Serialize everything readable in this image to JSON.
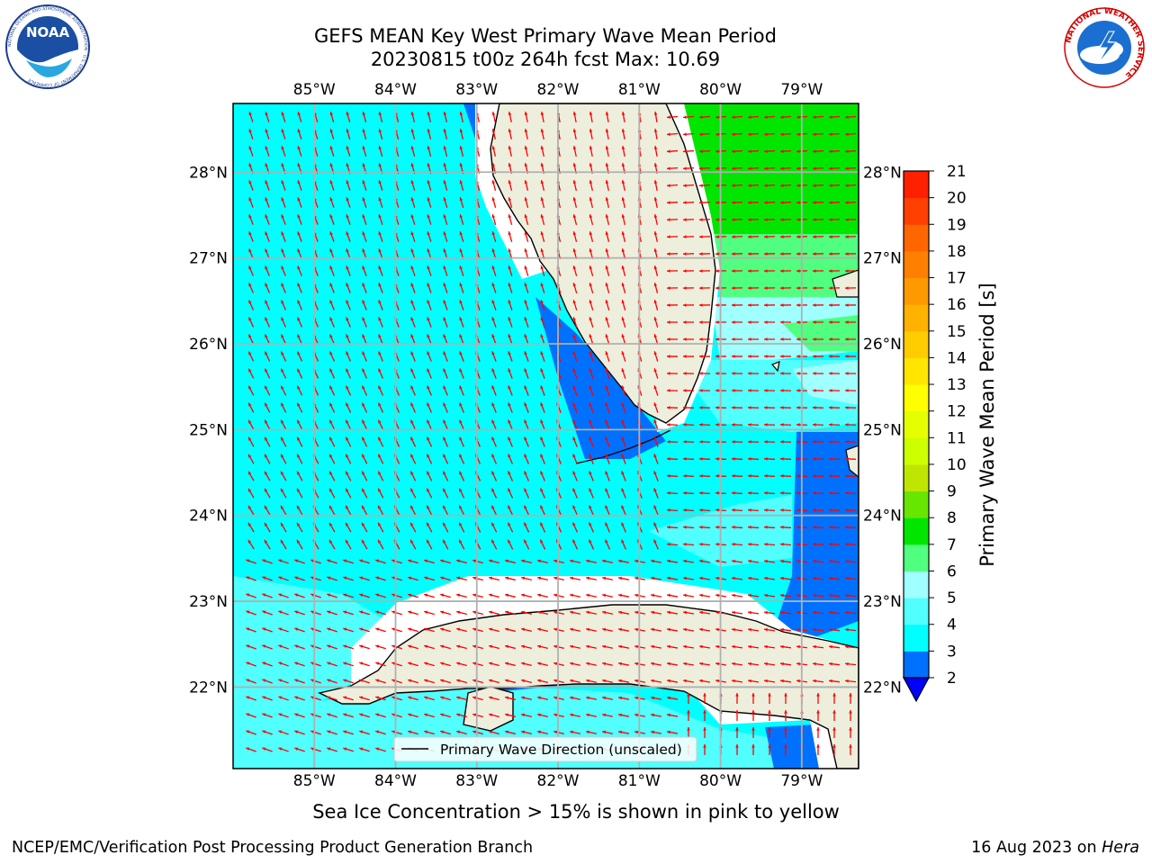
{
  "header": {
    "title_line1": "GEFS MEAN Key West Primary Wave Mean Period",
    "title_line2": "20230815 t00z 264h fcst   Max: 10.69"
  },
  "logos": {
    "noaa": {
      "text": "NOAA",
      "ring_text": "NATIONAL OCEANIC AND ATMOSPHERIC ADMINISTRATION · U.S. DEPARTMENT OF COMMERCE"
    },
    "nws": {
      "ring_text": "NATIONAL WEATHER SERVICE"
    }
  },
  "map": {
    "projection": "lat-lon",
    "lon_range": [
      -86.0,
      -78.3
    ],
    "lat_range": [
      21.05,
      28.8
    ],
    "lon_ticks": [
      "85°W",
      "84°W",
      "83°W",
      "82°W",
      "81°W",
      "80°W",
      "79°W"
    ],
    "lat_ticks": [
      "22°N",
      "23°N",
      "24°N",
      "25°N",
      "26°N",
      "27°N",
      "28°N"
    ],
    "land_color": "#eeeedc",
    "coast_color": "#000000",
    "grid_color": "#b0b0b0",
    "arrow_color": "#ff0000",
    "legend_label": "Primary Wave Direction (unscaled)"
  },
  "colorbar": {
    "label": "Primary Wave Mean Period [s]",
    "levels": [
      2,
      4,
      6,
      8,
      10,
      12,
      14,
      16,
      18,
      20
    ],
    "tick_labels": [
      "2",
      "3",
      "4",
      "5",
      "6",
      "7",
      "8",
      "9",
      "10",
      "11",
      "12",
      "13",
      "14",
      "15",
      "16",
      "17",
      "18",
      "19",
      "20",
      "21"
    ],
    "colors": [
      "#0070ff",
      "#00ffff",
      "#51ffff",
      "#a0ffff",
      "#50ff80",
      "#00e600",
      "#66e600",
      "#bfe600",
      "#ccff00",
      "#e5ff00",
      "#ffff00",
      "#ffe500",
      "#ffcc00",
      "#ffb200",
      "#ff9900",
      "#ff8000",
      "#ff6600",
      "#ff4000",
      "#ff2000",
      "#ff0000"
    ],
    "extend_color": "#0000ff"
  },
  "footer": {
    "ice_note": "Sea Ice Concentration > 15% is shown in pink to yellow",
    "credit": "NCEP/EMC/Verification Post Processing Product Generation Branch",
    "date_prefix": "16 Aug 2023 on ",
    "host": "Hera"
  }
}
